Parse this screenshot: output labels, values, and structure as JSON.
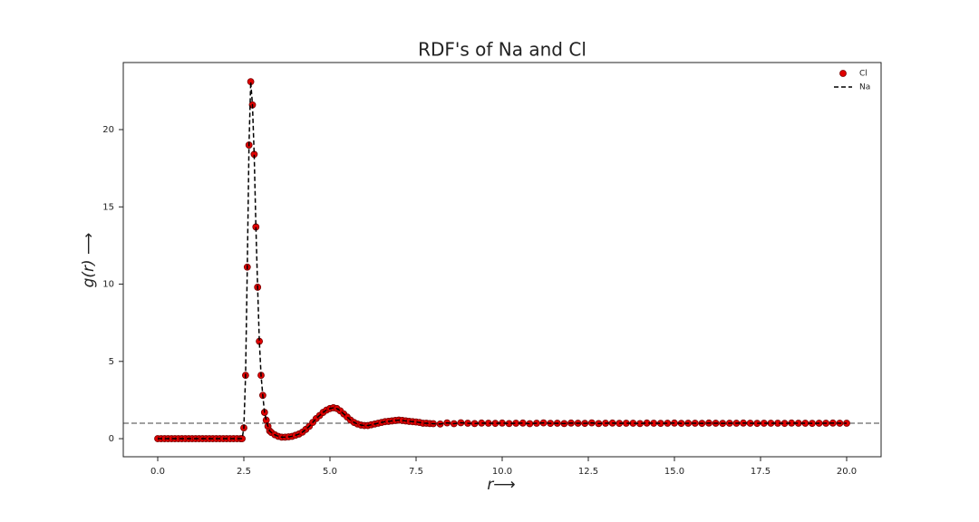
{
  "chart_data": {
    "type": "scatter",
    "title": "RDF's of Na and Cl",
    "x_label": "r⟶",
    "y_label": "g(r) ⟶",
    "x": [
      0,
      0.1,
      0.2,
      0.3,
      0.4,
      0.5,
      0.6,
      0.7,
      0.8,
      0.9,
      1.0,
      1.1,
      1.2,
      1.3,
      1.4,
      1.5,
      1.6,
      1.7,
      1.8,
      1.9,
      2.0,
      2.1,
      2.2,
      2.3,
      2.4,
      2.45,
      2.5,
      2.55,
      2.6,
      2.65,
      2.7,
      2.75,
      2.8,
      2.85,
      2.9,
      2.95,
      3.0,
      3.05,
      3.1,
      3.15,
      3.2,
      3.25,
      3.3,
      3.4,
      3.5,
      3.6,
      3.7,
      3.8,
      3.9,
      4.0,
      4.1,
      4.2,
      4.3,
      4.4,
      4.5,
      4.6,
      4.7,
      4.8,
      4.9,
      5.0,
      5.1,
      5.2,
      5.3,
      5.4,
      5.5,
      5.6,
      5.7,
      5.8,
      5.9,
      6.0,
      6.1,
      6.2,
      6.3,
      6.4,
      6.5,
      6.6,
      6.7,
      6.8,
      6.9,
      7.0,
      7.1,
      7.2,
      7.3,
      7.4,
      7.5,
      7.6,
      7.7,
      7.8,
      7.9,
      8.0,
      8.2,
      8.4,
      8.6,
      8.8,
      9.0,
      9.2,
      9.4,
      9.6,
      9.8,
      10.0,
      10.2,
      10.4,
      10.6,
      10.8,
      11.0,
      11.2,
      11.4,
      11.6,
      11.8,
      12.0,
      12.2,
      12.4,
      12.6,
      12.8,
      13.0,
      13.2,
      13.4,
      13.6,
      13.8,
      14.0,
      14.2,
      14.4,
      14.6,
      14.8,
      15.0,
      15.2,
      15.4,
      15.6,
      15.8,
      16.0,
      16.2,
      16.4,
      16.6,
      16.8,
      17.0,
      17.2,
      17.4,
      17.6,
      17.8,
      18.0,
      18.2,
      18.4,
      18.6,
      18.8,
      19.0,
      19.2,
      19.4,
      19.6,
      19.8,
      20.0
    ],
    "series": [
      {
        "name": "Cl",
        "style": "markers",
        "color": "#e00000",
        "values": [
          0,
          0,
          0,
          0,
          0,
          0,
          0,
          0,
          0,
          0,
          0,
          0,
          0,
          0,
          0,
          0,
          0,
          0,
          0,
          0,
          0,
          0,
          0,
          0,
          0,
          0,
          0.7,
          4.1,
          11.1,
          19.0,
          23.1,
          21.6,
          18.4,
          13.7,
          9.8,
          6.3,
          4.1,
          2.8,
          1.7,
          1.2,
          0.8,
          0.5,
          0.4,
          0.25,
          0.15,
          0.1,
          0.1,
          0.12,
          0.15,
          0.22,
          0.3,
          0.42,
          0.6,
          0.8,
          1.05,
          1.3,
          1.5,
          1.7,
          1.85,
          1.95,
          2.0,
          1.95,
          1.8,
          1.6,
          1.4,
          1.2,
          1.05,
          0.95,
          0.88,
          0.85,
          0.85,
          0.9,
          0.95,
          1.0,
          1.05,
          1.1,
          1.12,
          1.15,
          1.18,
          1.2,
          1.18,
          1.15,
          1.12,
          1.1,
          1.08,
          1.05,
          1.0,
          1.0,
          0.98,
          0.97,
          0.95,
          1.02,
          0.97,
          1.03,
          1.0,
          0.98,
          1.01,
          1.0,
          0.99,
          1.01,
          0.98,
          1.0,
          1.01,
          0.97,
          1.0,
          1.02,
          0.99,
          1.0,
          0.98,
          1.01,
          1.0,
          0.99,
          1.02,
          0.98,
          1.0,
          1.01,
          0.99,
          1.0,
          1.0,
          0.98,
          1.01,
          1.0,
          0.99,
          1.0,
          1.01,
          0.99,
          1.0,
          1.0,
          0.99,
          1.01,
          1.0,
          0.99,
          1.0,
          1.0,
          1.01,
          1.0,
          0.99,
          1.0,
          1.0,
          1.0,
          0.99,
          1.01,
          1.0,
          1.0,
          0.99,
          1.0,
          1.0,
          1.01,
          1.0,
          1.0
        ]
      },
      {
        "name": "Na",
        "style": "dashed",
        "color": "#000000",
        "values": [
          0,
          0,
          0,
          0,
          0,
          0,
          0,
          0,
          0,
          0,
          0,
          0,
          0,
          0,
          0,
          0,
          0,
          0,
          0,
          0,
          0,
          0,
          0,
          0,
          0,
          0,
          0.7,
          4.1,
          11.1,
          19.0,
          23.1,
          21.6,
          18.4,
          13.7,
          9.8,
          6.3,
          4.1,
          2.8,
          1.7,
          1.2,
          0.8,
          0.5,
          0.4,
          0.25,
          0.15,
          0.1,
          0.1,
          0.12,
          0.15,
          0.22,
          0.3,
          0.42,
          0.6,
          0.8,
          1.05,
          1.3,
          1.5,
          1.7,
          1.85,
          1.95,
          2.0,
          1.95,
          1.8,
          1.6,
          1.4,
          1.2,
          1.05,
          0.95,
          0.88,
          0.85,
          0.85,
          0.9,
          0.95,
          1.0,
          1.05,
          1.1,
          1.12,
          1.15,
          1.18,
          1.2,
          1.18,
          1.15,
          1.12,
          1.1,
          1.08,
          1.05,
          1.0,
          1.0,
          0.98,
          0.97,
          0.95,
          1.02,
          0.97,
          1.03,
          1.0,
          0.98,
          1.01,
          1.0,
          0.99,
          1.01,
          0.98,
          1.0,
          1.01,
          0.97,
          1.0,
          1.02,
          0.99,
          1.0,
          0.98,
          1.01,
          1.0,
          0.99,
          1.02,
          0.98,
          1.0,
          1.01,
          0.99,
          1.0,
          1.0,
          0.98,
          1.01,
          1.0,
          0.99,
          1.0,
          1.01,
          0.99,
          1.0,
          1.0,
          0.99,
          1.01,
          1.0,
          0.99,
          1.0,
          1.0,
          1.01,
          1.0,
          0.99,
          1.0,
          1.0,
          1.0,
          0.99,
          1.01,
          1.0,
          1.0,
          0.99,
          1.0,
          1.0,
          1.01,
          1.0,
          1.0
        ]
      }
    ],
    "reference_line": 1,
    "reference_color": "#808080",
    "xlim": [
      -1,
      21
    ],
    "ylim": [
      -1.17,
      24.34
    ],
    "xticks": [
      {
        "value": 0,
        "label": "0.0"
      },
      2.5,
      {
        "value": 5,
        "label": "5.0"
      },
      7.5,
      {
        "value": 10,
        "label": "10.0"
      },
      12.5,
      {
        "value": 15,
        "label": "15.0"
      },
      17.5,
      {
        "value": 20,
        "label": "20.0"
      }
    ],
    "yticks": [
      0,
      5,
      10,
      15,
      20
    ],
    "legend": "upper right"
  }
}
